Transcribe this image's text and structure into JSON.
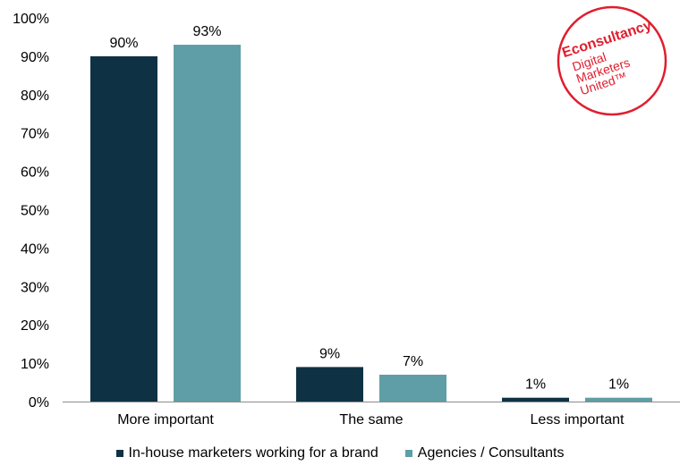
{
  "chart_data": {
    "type": "bar",
    "categories": [
      "More important",
      "The same",
      "Less important"
    ],
    "series": [
      {
        "name": "In-house marketers working for a brand",
        "values": [
          90,
          9,
          1
        ],
        "labels": [
          "90%",
          "9%",
          "1%"
        ],
        "color": "#0e3244"
      },
      {
        "name": "Agencies / Consultants",
        "values": [
          93,
          7,
          1
        ],
        "labels": [
          "93%",
          "7%",
          "1%"
        ],
        "color": "#5f9ea6"
      }
    ],
    "yticks": [
      "0%",
      "10%",
      "20%",
      "30%",
      "40%",
      "50%",
      "60%",
      "70%",
      "80%",
      "90%",
      "100%"
    ],
    "ylim": [
      0,
      100
    ],
    "legend_position": "bottom"
  },
  "logo": {
    "brand": "Econsultancy",
    "line1": "Digital",
    "line2": "Marketers",
    "line3": "United™",
    "color": "#e01e2e"
  }
}
